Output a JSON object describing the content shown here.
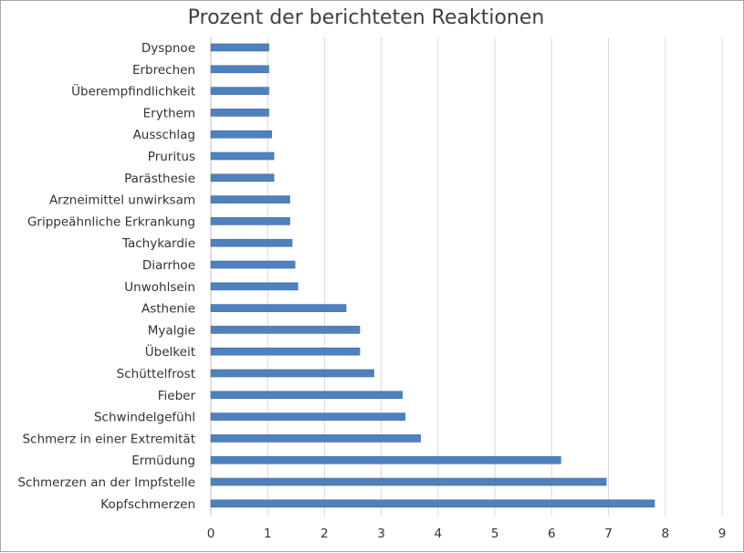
{
  "chart_data": {
    "type": "bar",
    "orientation": "horizontal",
    "title": "Prozent der berichteten Reaktionen",
    "xlabel": "",
    "ylabel": "",
    "xlim": [
      0,
      9
    ],
    "x_ticks": [
      "0",
      "1",
      "2",
      "3",
      "4",
      "5",
      "6",
      "7",
      "8",
      "9"
    ],
    "grid": "vertical",
    "legend": "none",
    "bar_color": "#4f81bd",
    "categories": [
      "Dyspnoe",
      "Erbrechen",
      "Überempfindlichkeit",
      "Erythem",
      "Ausschlag",
      "Pruritus",
      "Parästhesie",
      "Arzneimittel unwirksam",
      "Grippeähnliche Erkrankung",
      "Tachykardie",
      "Diarrhoe",
      "Unwohlsein",
      "Asthenie",
      "Myalgie",
      "Übelkeit",
      "Schüttelfrost",
      "Fieber",
      "Schwindelgefühl",
      "Schmerz in einer Extremität",
      "Ermüdung",
      "Schmerzen an der Impfstelle",
      "Kopfschmerzen"
    ],
    "values": [
      1.02,
      1.02,
      1.02,
      1.02,
      1.07,
      1.11,
      1.11,
      1.39,
      1.39,
      1.43,
      1.48,
      1.53,
      2.38,
      2.62,
      2.62,
      2.87,
      3.37,
      3.42,
      3.69,
      6.16,
      6.96,
      7.81
    ]
  }
}
